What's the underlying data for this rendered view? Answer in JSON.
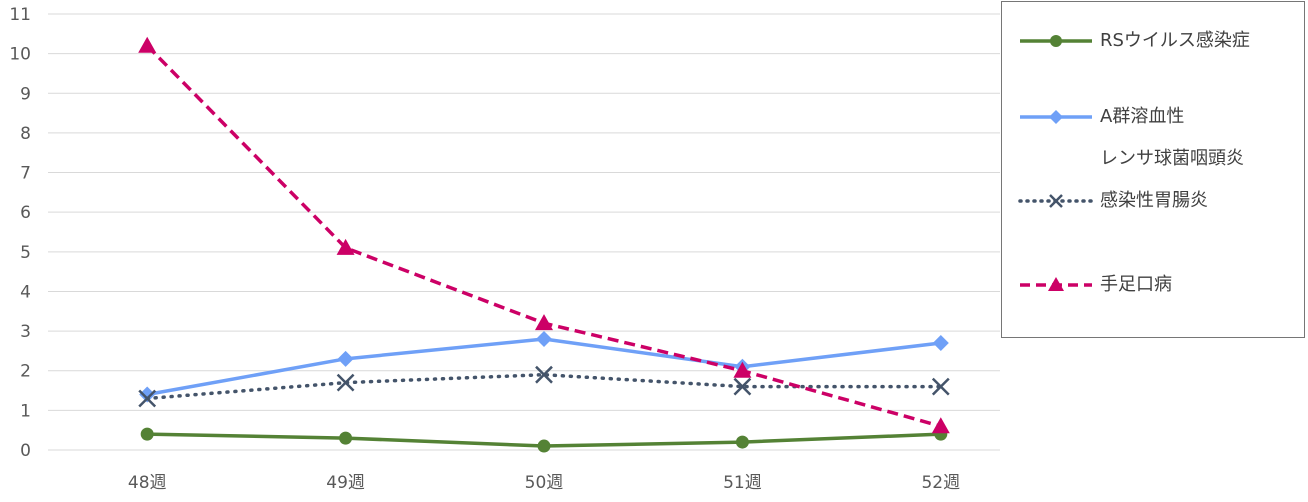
{
  "chart_data": {
    "type": "line",
    "categories": [
      "48週",
      "49週",
      "50週",
      "51週",
      "52週"
    ],
    "ylim": [
      0,
      11
    ],
    "yticks": [
      0,
      1,
      2,
      3,
      4,
      5,
      6,
      7,
      8,
      9,
      10,
      11
    ],
    "grid": true,
    "legend_position": "right",
    "series": [
      {
        "name": "RSウイルス感染症",
        "values": [
          0.4,
          0.3,
          0.1,
          0.2,
          0.4
        ],
        "color": "#548235",
        "marker": "circle",
        "dash": "solid"
      },
      {
        "name": "A群溶血性\nレンサ球菌咽頭炎",
        "values": [
          1.4,
          2.3,
          2.8,
          2.1,
          2.7
        ],
        "color": "#6fa0f7",
        "marker": "diamond",
        "dash": "solid"
      },
      {
        "name": "感染性胃腸炎",
        "values": [
          1.3,
          1.7,
          1.9,
          1.6,
          1.6
        ],
        "color": "#44546a",
        "marker": "x",
        "dash": "dotted"
      },
      {
        "name": "手足口病",
        "values": [
          10.2,
          5.1,
          3.2,
          2.0,
          0.6
        ],
        "color": "#cc0066",
        "marker": "triangle",
        "dash": "dashed"
      }
    ]
  },
  "legend": {
    "items": [
      {
        "label": "RSウイルス感染症"
      },
      {
        "label_line1": "A群溶血性",
        "label_line2": "レンサ球菌咽頭炎"
      },
      {
        "label": "感染性胃腸炎"
      },
      {
        "label": "手足口病"
      }
    ]
  }
}
